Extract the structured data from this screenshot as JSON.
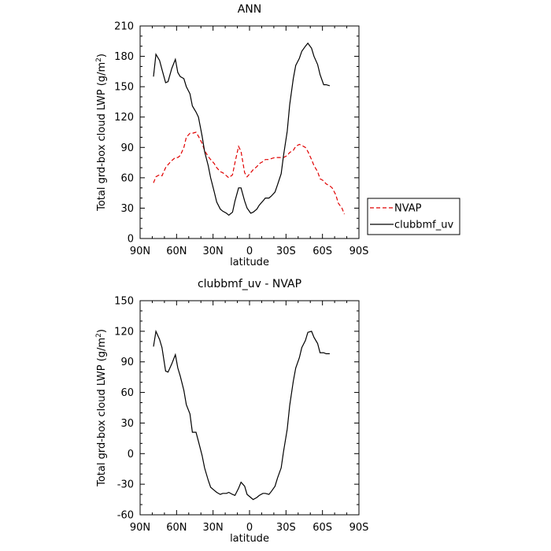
{
  "chart_data": [
    {
      "type": "line",
      "title": "ANN",
      "xlabel": "latitude",
      "ylabel": "Total grd-box cloud LWP (g/m",
      "ylabel_sup": "2",
      "ylabel_end": ")",
      "xlim": [
        90,
        -90
      ],
      "ylim": [
        0,
        210
      ],
      "x_ticks": [
        90,
        60,
        30,
        0,
        -30,
        -60,
        -90
      ],
      "x_tick_labels": [
        "90N",
        "60N",
        "30N",
        "0",
        "30S",
        "60S",
        "90S"
      ],
      "y_ticks": [
        0,
        30,
        60,
        90,
        120,
        150,
        180,
        210
      ],
      "y_tick_labels": [
        "0",
        "30",
        "60",
        "90",
        "120",
        "150",
        "180",
        "210"
      ],
      "legend": {
        "position": "right",
        "entries": [
          "NVAP",
          "clubbmf_uv"
        ]
      },
      "series": [
        {
          "name": "NVAP",
          "color": "#e00000",
          "dash": "dashed",
          "x": [
            79,
            77,
            74,
            72,
            69,
            67,
            64,
            61,
            59,
            57,
            54,
            52,
            49,
            47,
            44,
            42,
            39,
            37,
            34,
            32,
            29,
            27,
            24,
            22,
            19,
            17,
            14,
            12,
            9,
            7,
            4,
            2,
            -1,
            -3,
            -6,
            -8,
            -11,
            -13,
            -16,
            -18,
            -21,
            -23,
            -26,
            -28,
            -31,
            -33,
            -36,
            -38,
            -41,
            -43,
            -46,
            -48,
            -51,
            -53,
            -56,
            -58,
            -61,
            -63,
            -66,
            -68,
            -71,
            -73,
            -76,
            -78
          ],
          "y": [
            55,
            61,
            63,
            62,
            70,
            73,
            77,
            80,
            80,
            82,
            90,
            100,
            104,
            104,
            105,
            101,
            94,
            87,
            81,
            78,
            74,
            70,
            66,
            65,
            62,
            60,
            63,
            75,
            91,
            86,
            65,
            61,
            65,
            68,
            71,
            74,
            76,
            78,
            78,
            79,
            80,
            80,
            80,
            80,
            82,
            85,
            87,
            91,
            93,
            92,
            90,
            86,
            78,
            72,
            66,
            59,
            57,
            54,
            52,
            50,
            43,
            35,
            30,
            24
          ]
        },
        {
          "name": "clubbmf_uv",
          "color": "#000000",
          "dash": "solid",
          "x": [
            79,
            77,
            74,
            72,
            69,
            67,
            64,
            61,
            59,
            57,
            54,
            52,
            49,
            47,
            44,
            42,
            39,
            37,
            34,
            32,
            29,
            27,
            24,
            22,
            19,
            17,
            14,
            12,
            9,
            7,
            4,
            2,
            -1,
            -3,
            -6,
            -8,
            -11,
            -13,
            -16,
            -18,
            -21,
            -23,
            -26,
            -28,
            -31,
            -33,
            -36,
            -38,
            -41,
            -43,
            -46,
            -48,
            -51,
            -53,
            -56,
            -58,
            -61,
            -63,
            -66
          ],
          "y": [
            160,
            182,
            176,
            167,
            154,
            155,
            168,
            177,
            164,
            160,
            158,
            150,
            143,
            131,
            125,
            120,
            101,
            86,
            72,
            60,
            46,
            36,
            29,
            27,
            25,
            23,
            26,
            37,
            50,
            50,
            37,
            30,
            25,
            26,
            29,
            33,
            37,
            40,
            40,
            42,
            46,
            53,
            64,
            82,
            106,
            132,
            158,
            171,
            178,
            185,
            190,
            193,
            188,
            180,
            172,
            162,
            152,
            152,
            151
          ]
        }
      ]
    },
    {
      "type": "line",
      "title": "clubbmf_uv - NVAP",
      "xlabel": "latitude",
      "ylabel": "Total grd-box cloud LWP (g/m",
      "ylabel_sup": "2",
      "ylabel_end": ")",
      "xlim": [
        90,
        -90
      ],
      "ylim": [
        -60,
        150
      ],
      "x_ticks": [
        90,
        60,
        30,
        0,
        -30,
        -60,
        -90
      ],
      "x_tick_labels": [
        "90N",
        "60N",
        "30N",
        "0",
        "30S",
        "60S",
        "90S"
      ],
      "y_ticks": [
        -60,
        -30,
        0,
        30,
        60,
        90,
        120,
        150
      ],
      "y_tick_labels": [
        "-60",
        "-30",
        "0",
        "30",
        "60",
        "90",
        "120",
        "150"
      ],
      "series": [
        {
          "color": "#000000",
          "dash": "solid",
          "x": [
            79,
            77,
            74,
            72,
            69,
            67,
            64,
            61,
            59,
            57,
            54,
            52,
            49,
            47,
            44,
            42,
            39,
            37,
            34,
            32,
            29,
            27,
            24,
            22,
            19,
            17,
            14,
            12,
            9,
            7,
            4,
            2,
            -1,
            -3,
            -6,
            -8,
            -11,
            -13,
            -16,
            -18,
            -21,
            -23,
            -26,
            -28,
            -31,
            -33,
            -36,
            -38,
            -41,
            -43,
            -46,
            -48,
            -51,
            -53,
            -56,
            -58,
            -61,
            -63,
            -66
          ],
          "y": [
            105,
            120,
            112,
            104,
            81,
            80,
            88,
            97,
            84,
            76,
            62,
            48,
            39,
            21,
            21,
            12,
            -2,
            -14,
            -26,
            -33,
            -36,
            -38,
            -40,
            -39,
            -39,
            -38,
            -40,
            -41,
            -34,
            -28,
            -32,
            -40,
            -43,
            -45,
            -43,
            -41,
            -39,
            -39,
            -40,
            -37,
            -32,
            -24,
            -14,
            2,
            24,
            47,
            71,
            84,
            94,
            104,
            111,
            119,
            120,
            114,
            108,
            99,
            99,
            98,
            98
          ]
        }
      ]
    }
  ]
}
